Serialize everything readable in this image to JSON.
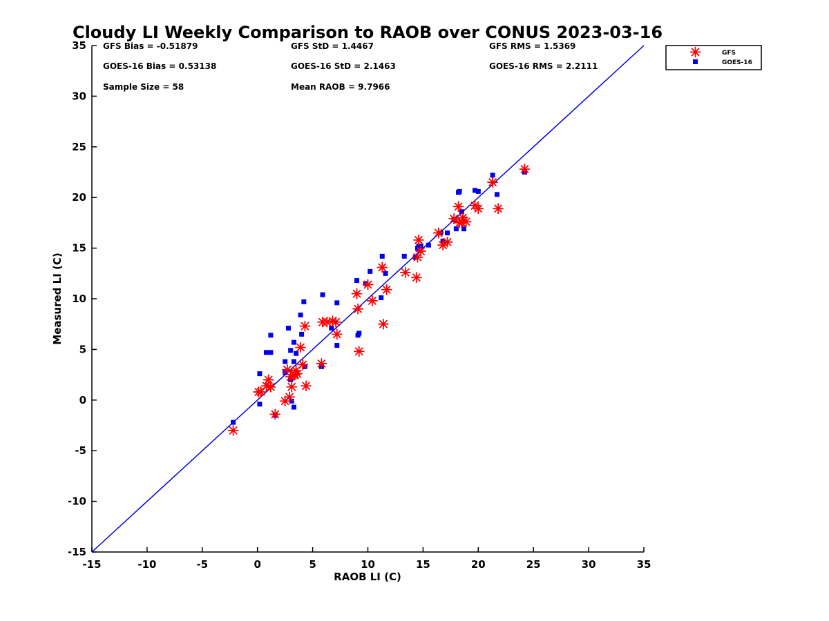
{
  "chart_data": {
    "type": "scatter",
    "title": "Cloudy LI Weekly Comparison to RAOB over CONUS 2023-03-16",
    "xlabel": "RAOB LI (C)",
    "ylabel": "Measured LI (C)",
    "xlim": [
      -15,
      35
    ],
    "ylim": [
      -15,
      35
    ],
    "xticks": [
      "-15",
      "-10",
      "-5",
      "0",
      "5",
      "10",
      "15",
      "20",
      "25",
      "30",
      "35"
    ],
    "yticks": [
      "-15",
      "-10",
      "-5",
      "0",
      "5",
      "10",
      "15",
      "20",
      "25",
      "30",
      "35"
    ],
    "grid": false,
    "legend_position": "outside-top-right",
    "reference_line": {
      "x": [
        -15,
        35
      ],
      "y": [
        -15,
        35
      ],
      "color": "#0000dd"
    },
    "stats": [
      [
        "GFS Bias = -0.51879",
        "GFS StD = 1.4467",
        "GFS RMS = 1.5369"
      ],
      [
        "GOES-16 Bias = 0.53138",
        "GOES-16 StD = 2.1463",
        "GOES-16 RMS = 2.2111"
      ],
      [
        "Sample Size = 58",
        "Mean RAOB = 9.7966",
        ""
      ]
    ],
    "series": [
      {
        "name": "GFS",
        "marker": "asterisk",
        "color": "#ff0000",
        "x": [
          -2.2,
          0.1,
          0.3,
          0.8,
          1.0,
          1.2,
          1.6,
          2.5,
          2.7,
          2.9,
          3.0,
          3.1,
          3.3,
          3.4,
          3.5,
          3.6,
          3.9,
          4.1,
          4.3,
          4.4,
          5.8,
          5.9,
          6.3,
          6.8,
          7.1,
          7.2,
          9.0,
          9.1,
          9.2,
          10.0,
          10.4,
          11.3,
          11.4,
          11.7,
          13.4,
          14.4,
          14.5,
          14.6,
          14.8,
          16.4,
          16.8,
          17.2,
          17.8,
          18.2,
          18.3,
          18.5,
          18.6,
          18.9,
          19.7,
          20.0,
          21.3,
          21.8,
          24.2
        ],
        "y": [
          -3.0,
          0.8,
          0.8,
          1.4,
          2.0,
          1.3,
          -1.4,
          -0.1,
          3.0,
          0.3,
          2.3,
          1.3,
          2.5,
          2.5,
          2.9,
          2.6,
          5.2,
          3.5,
          7.3,
          1.4,
          3.6,
          7.7,
          7.7,
          7.8,
          7.7,
          6.5,
          10.5,
          9.0,
          4.8,
          11.4,
          9.8,
          13.1,
          7.5,
          10.9,
          12.6,
          12.1,
          14.1,
          15.8,
          14.7,
          16.5,
          15.3,
          15.6,
          17.9,
          19.1,
          17.5,
          17.5,
          18.0,
          17.6,
          19.2,
          18.9,
          21.5,
          18.9,
          22.8
        ]
      },
      {
        "name": "GOES-16",
        "marker": "square",
        "color": "#0000ee",
        "x": [
          -2.2,
          0.2,
          0.2,
          0.8,
          1.2,
          1.2,
          1.6,
          2.5,
          2.5,
          2.8,
          3.0,
          3.0,
          3.1,
          3.3,
          3.3,
          3.3,
          3.5,
          3.9,
          4.0,
          4.2,
          4.3,
          5.8,
          5.9,
          6.7,
          7.2,
          7.2,
          9.0,
          9.1,
          9.2,
          9.8,
          10.2,
          11.2,
          11.3,
          11.6,
          13.3,
          14.3,
          14.5,
          14.6,
          14.8,
          15.5,
          16.6,
          16.8,
          17.2,
          17.8,
          18.0,
          18.2,
          18.3,
          18.5,
          18.7,
          19.7,
          20.0,
          21.3,
          21.7,
          24.2
        ],
        "y": [
          -2.2,
          2.6,
          -0.4,
          4.7,
          4.7,
          6.4,
          -1.5,
          3.8,
          2.7,
          7.1,
          4.9,
          2.0,
          -0.1,
          5.7,
          3.8,
          -0.7,
          4.6,
          8.4,
          6.5,
          9.7,
          3.3,
          3.3,
          10.4,
          7.1,
          9.6,
          5.4,
          11.8,
          6.4,
          6.6,
          11.5,
          12.7,
          10.1,
          14.2,
          12.5,
          14.2,
          14.1,
          15.0,
          15.2,
          15.2,
          15.3,
          16.5,
          15.7,
          16.5,
          17.8,
          16.9,
          20.5,
          20.6,
          18.6,
          16.9,
          20.7,
          20.6,
          22.2,
          20.3,
          22.5
        ]
      }
    ]
  }
}
